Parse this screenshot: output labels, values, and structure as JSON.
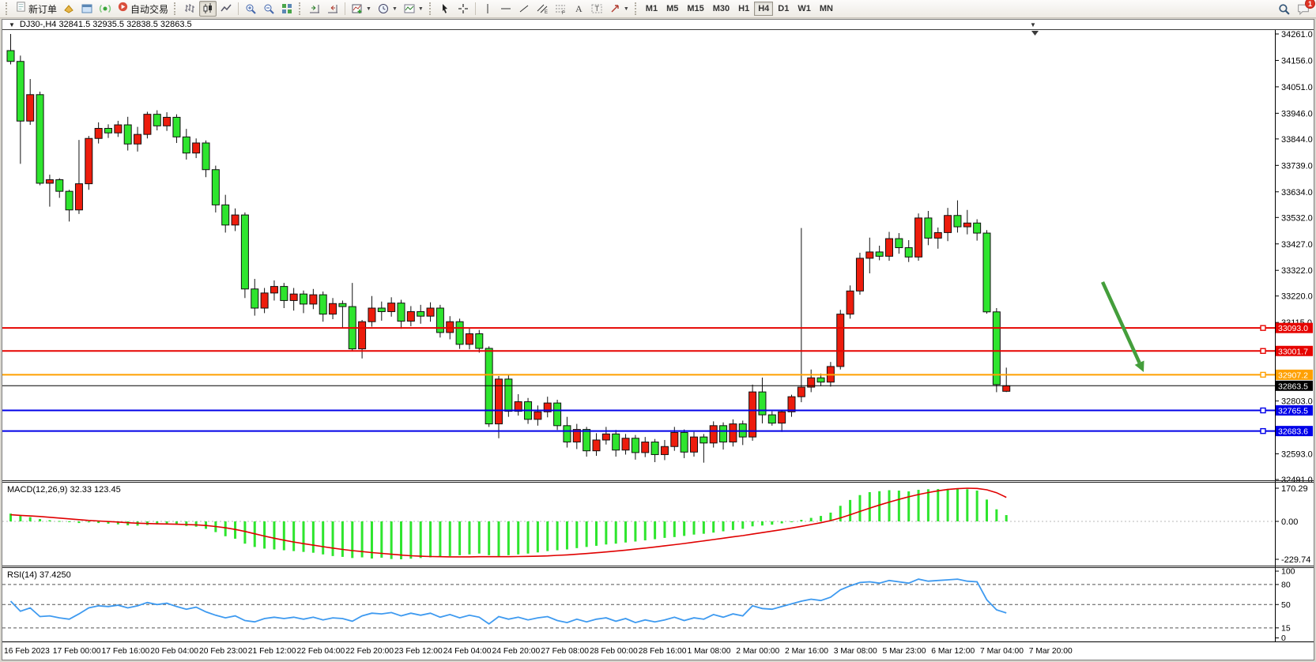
{
  "toolbar": {
    "new_order": "新订单",
    "auto_trading": "自动交易",
    "timeframes": [
      "M1",
      "M5",
      "M15",
      "M30",
      "H1",
      "H4",
      "D1",
      "W1",
      "MN"
    ],
    "active_timeframe": "H4",
    "chat_badge": "1"
  },
  "chart": {
    "title_line": "DJ30-,H4  32841.5 32935.5 32838.5 32863.5",
    "dropdown_glyph": "▼",
    "shift_marker_glyph": "▼"
  },
  "chart_data": {
    "type": "candlestick",
    "symbol": "DJ30-",
    "period": "H4",
    "current_ohlc": {
      "open": 32841.5,
      "high": 32935.5,
      "low": 32838.5,
      "close": 32863.5
    },
    "colors": {
      "up": "#ed1c0c",
      "down": "#2ee52e",
      "wick": "#111111",
      "rsi_line": "#3e9af0",
      "macd_hist": "#2ee52e",
      "macd_signal": "#e00000",
      "arrow": "#449e3b",
      "line_red": "#e60400",
      "line_orange": "#ffa000",
      "line_blue": "#0000e8",
      "line_black": "#000000"
    },
    "price_axis_labels": [
      34261.0,
      34156.0,
      34051.0,
      33946.0,
      33844.0,
      33739.0,
      33634.0,
      33532.0,
      33427.0,
      33322.0,
      33220.0,
      33115.0,
      32803.0,
      32593.0,
      32491.0
    ],
    "hlines": [
      {
        "price": 33093.0,
        "label": "33093.0",
        "color": "#e60400",
        "width": 2,
        "marker": true
      },
      {
        "price": 33001.7,
        "label": "33001.7",
        "color": "#e60400",
        "width": 2,
        "marker": true
      },
      {
        "price": 32907.2,
        "label": "32907.2",
        "color": "#ffa000",
        "width": 2,
        "marker": true
      },
      {
        "price": 32863.5,
        "label": "32863.5",
        "color": "#000000",
        "width": 1,
        "marker": false
      },
      {
        "price": 32765.5,
        "label": "32765.5",
        "color": "#0000e8",
        "width": 2,
        "marker": true
      },
      {
        "price": 32683.6,
        "label": "32683.6",
        "color": "#0000e8",
        "width": 2,
        "marker": true
      }
    ],
    "arrow_annotation": {
      "from": [
        1392,
        319
      ],
      "to": [
        1444,
        433
      ]
    },
    "time_labels": [
      "16 Feb 2023",
      "17 Feb 00:00",
      "17 Feb 16:00",
      "20 Feb 04:00",
      "20 Feb 23:00",
      "21 Feb 12:00",
      "22 Feb 04:00",
      "22 Feb 20:00",
      "23 Feb 12:00",
      "24 Feb 04:00",
      "24 Feb 20:00",
      "27 Feb 08:00",
      "28 Feb 00:00",
      "28 Feb 16:00",
      "1 Mar 08:00",
      "2 Mar 00:00",
      "2 Mar 16:00",
      "3 Mar 08:00",
      "5 Mar 23:00",
      "6 Mar 12:00",
      "7 Mar 04:00",
      "7 Mar 20:00"
    ],
    "time_tick_step": 5,
    "candles": [
      [
        34195,
        34261,
        34140,
        34152
      ],
      [
        34152,
        34175,
        33745,
        33915
      ],
      [
        33915,
        34082,
        33900,
        34020
      ],
      [
        34020,
        34032,
        33660,
        33668
      ],
      [
        33668,
        33702,
        33575,
        33682
      ],
      [
        33682,
        33688,
        33610,
        33636
      ],
      [
        33636,
        33642,
        33516,
        33562
      ],
      [
        33562,
        33840,
        33546,
        33666
      ],
      [
        33666,
        33856,
        33642,
        33846
      ],
      [
        33846,
        33910,
        33826,
        33886
      ],
      [
        33886,
        33902,
        33848,
        33868
      ],
      [
        33868,
        33916,
        33852,
        33900
      ],
      [
        33900,
        33932,
        33798,
        33824
      ],
      [
        33824,
        33892,
        33794,
        33862
      ],
      [
        33862,
        33952,
        33846,
        33942
      ],
      [
        33942,
        33958,
        33878,
        33896
      ],
      [
        33896,
        33950,
        33876,
        33930
      ],
      [
        33930,
        33942,
        33828,
        33852
      ],
      [
        33852,
        33884,
        33762,
        33788
      ],
      [
        33788,
        33846,
        33768,
        33828
      ],
      [
        33828,
        33838,
        33692,
        33722
      ],
      [
        33722,
        33738,
        33552,
        33582
      ],
      [
        33582,
        33622,
        33472,
        33502
      ],
      [
        33502,
        33568,
        33478,
        33542
      ],
      [
        33542,
        33552,
        33212,
        33248
      ],
      [
        33248,
        33288,
        33142,
        33172
      ],
      [
        33172,
        33252,
        33152,
        33232
      ],
      [
        33232,
        33282,
        33202,
        33258
      ],
      [
        33258,
        33272,
        33172,
        33202
      ],
      [
        33202,
        33252,
        33162,
        33228
      ],
      [
        33228,
        33242,
        33152,
        33188
      ],
      [
        33188,
        33248,
        33168,
        33225
      ],
      [
        33225,
        33238,
        33118,
        33148
      ],
      [
        33148,
        33212,
        33128,
        33190
      ],
      [
        33190,
        33202,
        33092,
        33178
      ],
      [
        33178,
        33272,
        33002,
        33010
      ],
      [
        33010,
        33125,
        32972,
        33118
      ],
      [
        33118,
        33220,
        33098,
        33172
      ],
      [
        33172,
        33198,
        33122,
        33158
      ],
      [
        33158,
        33215,
        33138,
        33192
      ],
      [
        33192,
        33205,
        33090,
        33120
      ],
      [
        33120,
        33180,
        33100,
        33158
      ],
      [
        33158,
        33185,
        33110,
        33140
      ],
      [
        33140,
        33195,
        33118,
        33172
      ],
      [
        33172,
        33185,
        33055,
        33075
      ],
      [
        33075,
        33140,
        33048,
        33118
      ],
      [
        33118,
        33130,
        33010,
        33028
      ],
      [
        33028,
        33090,
        33008,
        33070
      ],
      [
        33070,
        33085,
        32995,
        33012
      ],
      [
        33012,
        33020,
        32700,
        32712
      ],
      [
        32712,
        32902,
        32655,
        32890
      ],
      [
        32890,
        32908,
        32740,
        32762
      ],
      [
        32762,
        32830,
        32745,
        32800
      ],
      [
        32800,
        32815,
        32712,
        32730
      ],
      [
        32730,
        32785,
        32705,
        32760
      ],
      [
        32760,
        32820,
        32738,
        32795
      ],
      [
        32795,
        32808,
        32688,
        32705
      ],
      [
        32705,
        32740,
        32618,
        32640
      ],
      [
        32640,
        32712,
        32612,
        32690
      ],
      [
        32690,
        32700,
        32582,
        32605
      ],
      [
        32605,
        32675,
        32585,
        32648
      ],
      [
        32648,
        32700,
        32630,
        32672
      ],
      [
        32672,
        32688,
        32582,
        32608
      ],
      [
        32608,
        32672,
        32590,
        32655
      ],
      [
        32655,
        32668,
        32570,
        32598
      ],
      [
        32598,
        32660,
        32580,
        32640
      ],
      [
        32640,
        32652,
        32560,
        32590
      ],
      [
        32590,
        32648,
        32568,
        32622
      ],
      [
        32622,
        32700,
        32605,
        32678
      ],
      [
        32678,
        32690,
        32576,
        32600
      ],
      [
        32600,
        32680,
        32582,
        32660
      ],
      [
        32660,
        32672,
        32558,
        32636
      ],
      [
        32636,
        32722,
        32618,
        32705
      ],
      [
        32705,
        32718,
        32610,
        32640
      ],
      [
        32640,
        32730,
        32622,
        32712
      ],
      [
        32712,
        32725,
        32628,
        32660
      ],
      [
        32660,
        32868,
        32645,
        32839
      ],
      [
        32839,
        32896,
        32714,
        32748
      ],
      [
        32748,
        32762,
        32705,
        32715
      ],
      [
        32715,
        32768,
        32680,
        32760
      ],
      [
        32760,
        32828,
        32740,
        32820
      ],
      [
        32820,
        33490,
        32798,
        32858
      ],
      [
        32858,
        32928,
        32838,
        32895
      ],
      [
        32895,
        32912,
        32862,
        32878
      ],
      [
        32878,
        32958,
        32860,
        32940
      ],
      [
        32940,
        33165,
        32928,
        33148
      ],
      [
        33148,
        33262,
        33130,
        33240
      ],
      [
        33240,
        33392,
        33225,
        33370
      ],
      [
        33370,
        33452,
        33310,
        33395
      ],
      [
        33395,
        33420,
        33362,
        33378
      ],
      [
        33378,
        33475,
        33360,
        33448
      ],
      [
        33448,
        33470,
        33388,
        33412
      ],
      [
        33412,
        33442,
        33355,
        33375
      ],
      [
        33375,
        33548,
        33360,
        33530
      ],
      [
        33530,
        33558,
        33422,
        33450
      ],
      [
        33450,
        33492,
        33408,
        33472
      ],
      [
        33472,
        33570,
        33438,
        33540
      ],
      [
        33540,
        33600,
        33472,
        33495
      ],
      [
        33495,
        33562,
        33465,
        33510
      ],
      [
        33510,
        33525,
        33440,
        33470
      ],
      [
        33470,
        33482,
        33150,
        33157
      ],
      [
        33157,
        33172,
        32838,
        32868
      ],
      [
        32841.5,
        32935.5,
        32838.5,
        32863.5
      ]
    ],
    "macd": {
      "label": "MACD(12,26,9) 32.33 123.45",
      "main_last": 32.33,
      "signal_last": 123.45,
      "axis_labels": [
        170.29,
        0.0,
        -229.74
      ],
      "histogram": [
        40,
        28,
        22,
        12,
        6,
        2,
        -4,
        -10,
        -6,
        -10,
        -14,
        -18,
        -24,
        -26,
        -22,
        -18,
        -16,
        -20,
        -28,
        -32,
        -45,
        -65,
        -90,
        -105,
        -135,
        -155,
        -165,
        -170,
        -175,
        -180,
        -185,
        -190,
        -200,
        -210,
        -215,
        -222,
        -218,
        -225,
        -220,
        -228,
        -229.74,
        -226,
        -222,
        -218,
        -215,
        -210,
        -205,
        -200,
        -195,
        -205,
        -210,
        -205,
        -200,
        -195,
        -188,
        -180,
        -175,
        -170,
        -162,
        -155,
        -148,
        -140,
        -135,
        -128,
        -122,
        -115,
        -108,
        -100,
        -95,
        -88,
        -80,
        -75,
        -68,
        -60,
        -52,
        -45,
        -30,
        -25,
        -20,
        -12,
        -5,
        8,
        18,
        28,
        45,
        80,
        110,
        135,
        150,
        155,
        160,
        158,
        154,
        162,
        165,
        166,
        167,
        168,
        165,
        158,
        112,
        62,
        32.33
      ],
      "signal": [
        34,
        31,
        28,
        25,
        21,
        17,
        13,
        9,
        5,
        2,
        -1,
        -4,
        -8,
        -11,
        -13,
        -15,
        -16,
        -17,
        -19,
        -21,
        -25,
        -31,
        -39,
        -49,
        -61,
        -75,
        -89,
        -102,
        -114,
        -125,
        -135,
        -144,
        -153,
        -162,
        -170,
        -177,
        -183,
        -189,
        -194,
        -199,
        -204,
        -208,
        -211,
        -213,
        -214,
        -215,
        -215,
        -215,
        -214,
        -214,
        -214,
        -214,
        -213,
        -212,
        -211,
        -209,
        -206,
        -203,
        -199,
        -195,
        -190,
        -185,
        -180,
        -174,
        -168,
        -162,
        -155,
        -148,
        -141,
        -134,
        -126,
        -118,
        -110,
        -102,
        -94,
        -86,
        -77,
        -68,
        -59,
        -50,
        -40,
        -30,
        -19,
        -8,
        4,
        18,
        34,
        51,
        68,
        84,
        99,
        113,
        126,
        138,
        148,
        157,
        164,
        168,
        170.29,
        169,
        162,
        147,
        123.45
      ]
    },
    "rsi": {
      "label": "RSI(14) 37.4250",
      "last": 37.425,
      "axis_labels": [
        100,
        80,
        50,
        15,
        0
      ],
      "level_lines": [
        80,
        50,
        15
      ],
      "values": [
        55,
        40,
        45,
        32,
        33,
        30,
        28,
        36,
        45,
        48,
        47,
        49,
        45,
        48,
        53,
        50,
        52,
        47,
        43,
        46,
        39,
        34,
        30,
        33,
        26,
        24,
        29,
        31,
        29,
        31,
        28,
        31,
        27,
        30,
        29,
        25,
        33,
        37,
        36,
        38,
        33,
        37,
        34,
        37,
        31,
        35,
        30,
        34,
        31,
        21,
        32,
        28,
        31,
        27,
        30,
        32,
        26,
        23,
        28,
        24,
        28,
        30,
        25,
        29,
        23,
        27,
        24,
        27,
        31,
        26,
        30,
        28,
        35,
        31,
        36,
        33,
        48,
        44,
        43,
        47,
        51,
        55,
        58,
        56,
        61,
        72,
        78,
        83,
        84,
        82,
        86,
        84,
        82,
        88,
        85,
        86,
        87,
        88,
        85,
        84,
        57,
        42,
        37.43
      ]
    }
  }
}
